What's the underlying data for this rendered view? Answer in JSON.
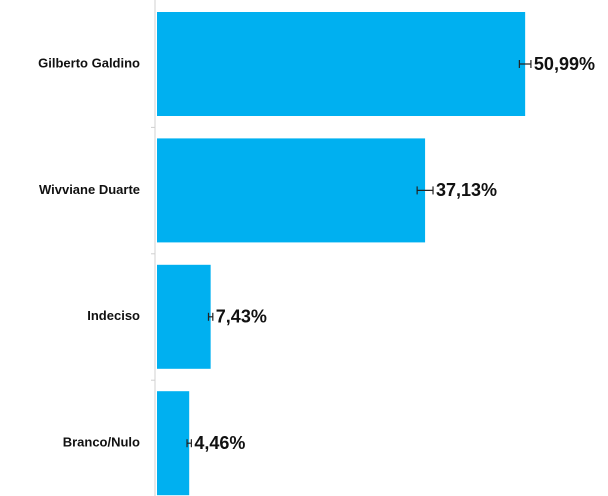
{
  "chart_data": {
    "type": "hbar",
    "categories": [
      "Gilberto Galdino",
      "Wivviane Duarte",
      "Indeciso",
      "Branco/Nulo"
    ],
    "values": [
      50.99,
      37.13,
      7.43,
      4.46
    ],
    "value_labels": [
      "50,99%",
      "37,13%",
      "7,43%",
      "4,46%"
    ],
    "errors": [
      0.8,
      1.1,
      0.3,
      0.3
    ],
    "color": "#00b0f0"
  }
}
